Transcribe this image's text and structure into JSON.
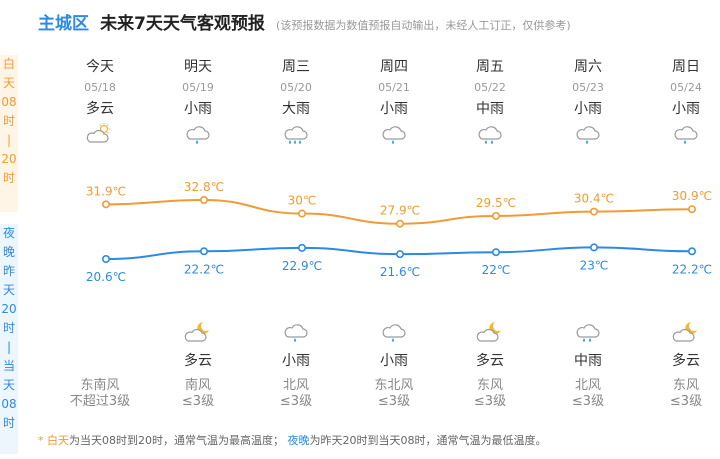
{
  "header": {
    "district": "主城区",
    "title": "未来7天天气客观预报",
    "note": "(该预报数据为数值预报自动输出，未经人工订正，仅供参考)"
  },
  "side_day": [
    "白",
    "天",
    "",
    "08",
    "时",
    "|",
    "20",
    "时"
  ],
  "side_night": [
    "夜",
    "晚",
    "",
    "昨",
    "天",
    "20",
    "时",
    "|",
    "当",
    "天",
    "08",
    "时"
  ],
  "days": [
    {
      "name": "今天",
      "date": "05/18",
      "day_weather": "多云",
      "day_icon": "partly-cloudy-sun-icon",
      "night_weather": "",
      "night_icon": "",
      "wind_dir": "东南风",
      "wind_level": "不超过3级"
    },
    {
      "name": "明天",
      "date": "05/19",
      "day_weather": "小雨",
      "day_icon": "light-rain-icon",
      "night_weather": "多云",
      "night_icon": "partly-cloudy-moon-icon",
      "wind_dir": "南风",
      "wind_level": "≤3级"
    },
    {
      "name": "周三",
      "date": "05/20",
      "day_weather": "大雨",
      "day_icon": "heavy-rain-icon",
      "night_weather": "小雨",
      "night_icon": "light-rain-icon",
      "wind_dir": "北风",
      "wind_level": "≤3级"
    },
    {
      "name": "周四",
      "date": "05/21",
      "day_weather": "小雨",
      "day_icon": "light-rain-icon",
      "night_weather": "小雨",
      "night_icon": "light-rain-icon",
      "wind_dir": "东北风",
      "wind_level": "≤3级"
    },
    {
      "name": "周五",
      "date": "05/22",
      "day_weather": "中雨",
      "day_icon": "moderate-rain-icon",
      "night_weather": "多云",
      "night_icon": "partly-cloudy-moon-icon",
      "wind_dir": "东风",
      "wind_level": "≤3级"
    },
    {
      "name": "周六",
      "date": "05/23",
      "day_weather": "小雨",
      "day_icon": "light-rain-icon",
      "night_weather": "中雨",
      "night_icon": "moderate-rain-icon",
      "wind_dir": "北风",
      "wind_level": "≤3级"
    },
    {
      "name": "周日",
      "date": "05/24",
      "day_weather": "小雨",
      "day_icon": "light-rain-icon",
      "night_weather": "多云",
      "night_icon": "partly-cloudy-moon-icon",
      "wind_dir": "东风",
      "wind_level": "≤3级"
    }
  ],
  "chart_data": {
    "type": "line",
    "categories": [
      "今天",
      "明天",
      "周三",
      "周四",
      "周五",
      "周六",
      "周日"
    ],
    "series": [
      {
        "values": [
          31.9,
          32.8,
          30,
          27.9,
          29.5,
          30.4,
          30.9
        ],
        "labels": [
          "31.9℃",
          "32.8℃",
          "30℃",
          "27.9℃",
          "29.5℃",
          "30.4℃",
          "30.9℃"
        ],
        "color": "#f39a33"
      },
      {
        "values": [
          20.6,
          22.2,
          22.9,
          21.6,
          22,
          23,
          22.2
        ],
        "labels": [
          "20.6℃",
          "22.2℃",
          "22.9℃",
          "21.6℃",
          "22℃",
          "23℃",
          "22.2℃"
        ],
        "color": "#2b8ae6"
      }
    ]
  },
  "footer": {
    "asterisk": "* ",
    "day_term": "白天",
    "day_text": "为当天08时到20时，通常气温为最高温度；",
    "night_term": "夜晚",
    "night_text": "为昨天20时到当天08时，通常气温为最低温度。"
  },
  "colors": {
    "accent": "#2b8ae6",
    "day": "#f39a33",
    "night": "#2b8ae6"
  }
}
